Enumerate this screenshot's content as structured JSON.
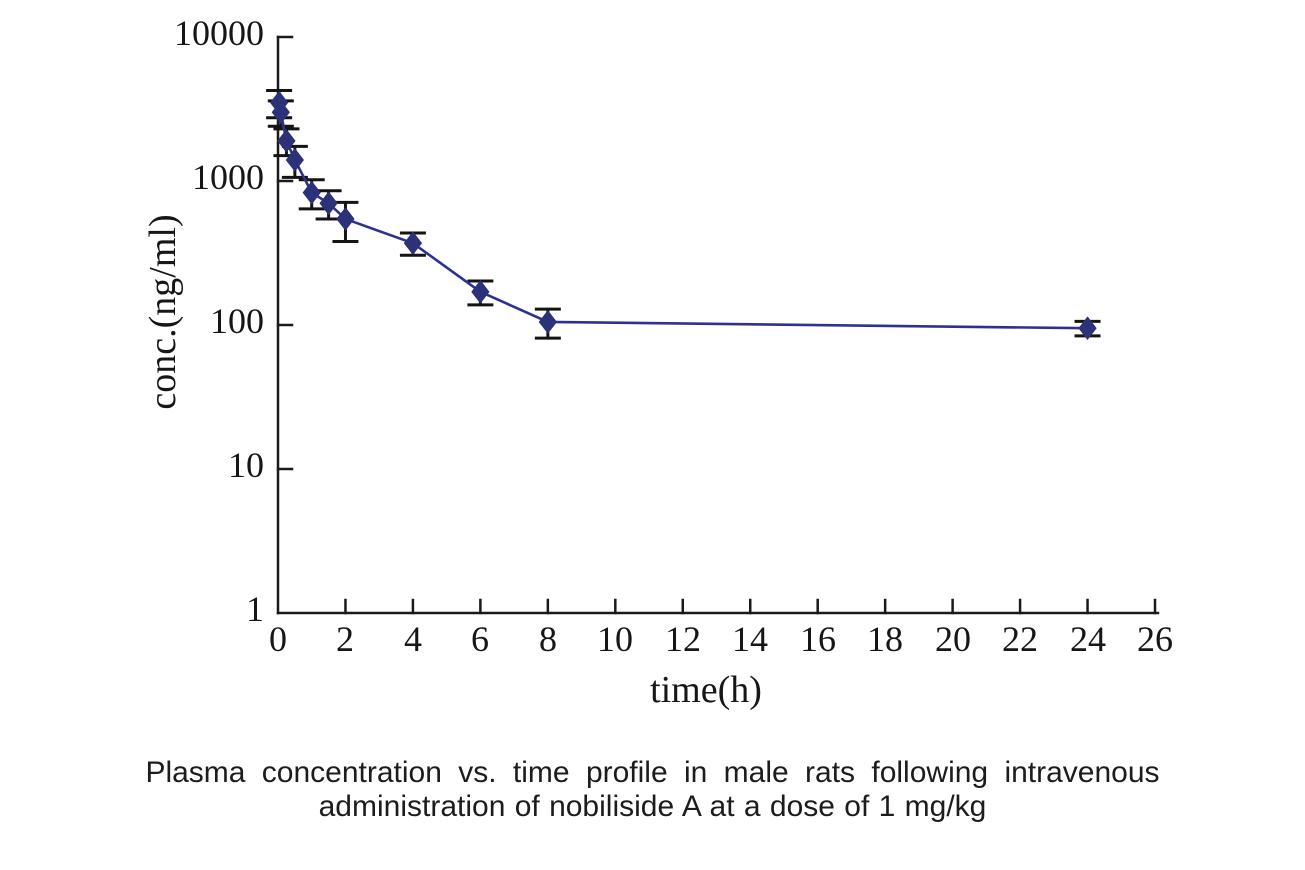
{
  "page": {
    "background": "#ffffff"
  },
  "caption": {
    "line1": "Plasma concentration vs. time profile in male rats following intravenous",
    "line2": "administration of nobiliside A at a dose of 1 mg/kg"
  },
  "chart_data": {
    "type": "line",
    "title": "",
    "xlabel": "time(h)",
    "ylabel": "conc.(ng/ml)",
    "x_axis": {
      "min": 0,
      "max": 26,
      "tick_step": 2,
      "tick_labels": [
        "0",
        "2",
        "4",
        "6",
        "8",
        "10",
        "12",
        "14",
        "16",
        "18",
        "20",
        "22",
        "24",
        "26"
      ]
    },
    "y_axis": {
      "scale": "log",
      "min": 1,
      "max": 10000,
      "tick_labels": [
        "1",
        "10",
        "100",
        "1000",
        "10000"
      ],
      "tick_values": [
        1,
        10,
        100,
        1000,
        10000
      ]
    },
    "grid": false,
    "legend": "none",
    "colors": {
      "line": "#2e3192",
      "marker": "#2b3277",
      "error_bar": "#141414",
      "axis": "#1a1a1a"
    },
    "series": [
      {
        "name": "nobiliside A 1 mg/kg i.v.",
        "marker": "diamond",
        "points": [
          {
            "t": 0.033,
            "conc": 3500,
            "err": 750
          },
          {
            "t": 0.083,
            "conc": 3000,
            "err": 600
          },
          {
            "t": 0.25,
            "conc": 1900,
            "err": 400
          },
          {
            "t": 0.5,
            "conc": 1400,
            "err": 340
          },
          {
            "t": 1,
            "conc": 830,
            "err": 190
          },
          {
            "t": 1.5,
            "conc": 700,
            "err": 155
          },
          {
            "t": 2,
            "conc": 545,
            "err": 165
          },
          {
            "t": 4,
            "conc": 370,
            "err": 65
          },
          {
            "t": 6,
            "conc": 170,
            "err": 32
          },
          {
            "t": 8,
            "conc": 105,
            "err": 24
          },
          {
            "t": 24,
            "conc": 95,
            "err": 11
          }
        ]
      }
    ]
  }
}
